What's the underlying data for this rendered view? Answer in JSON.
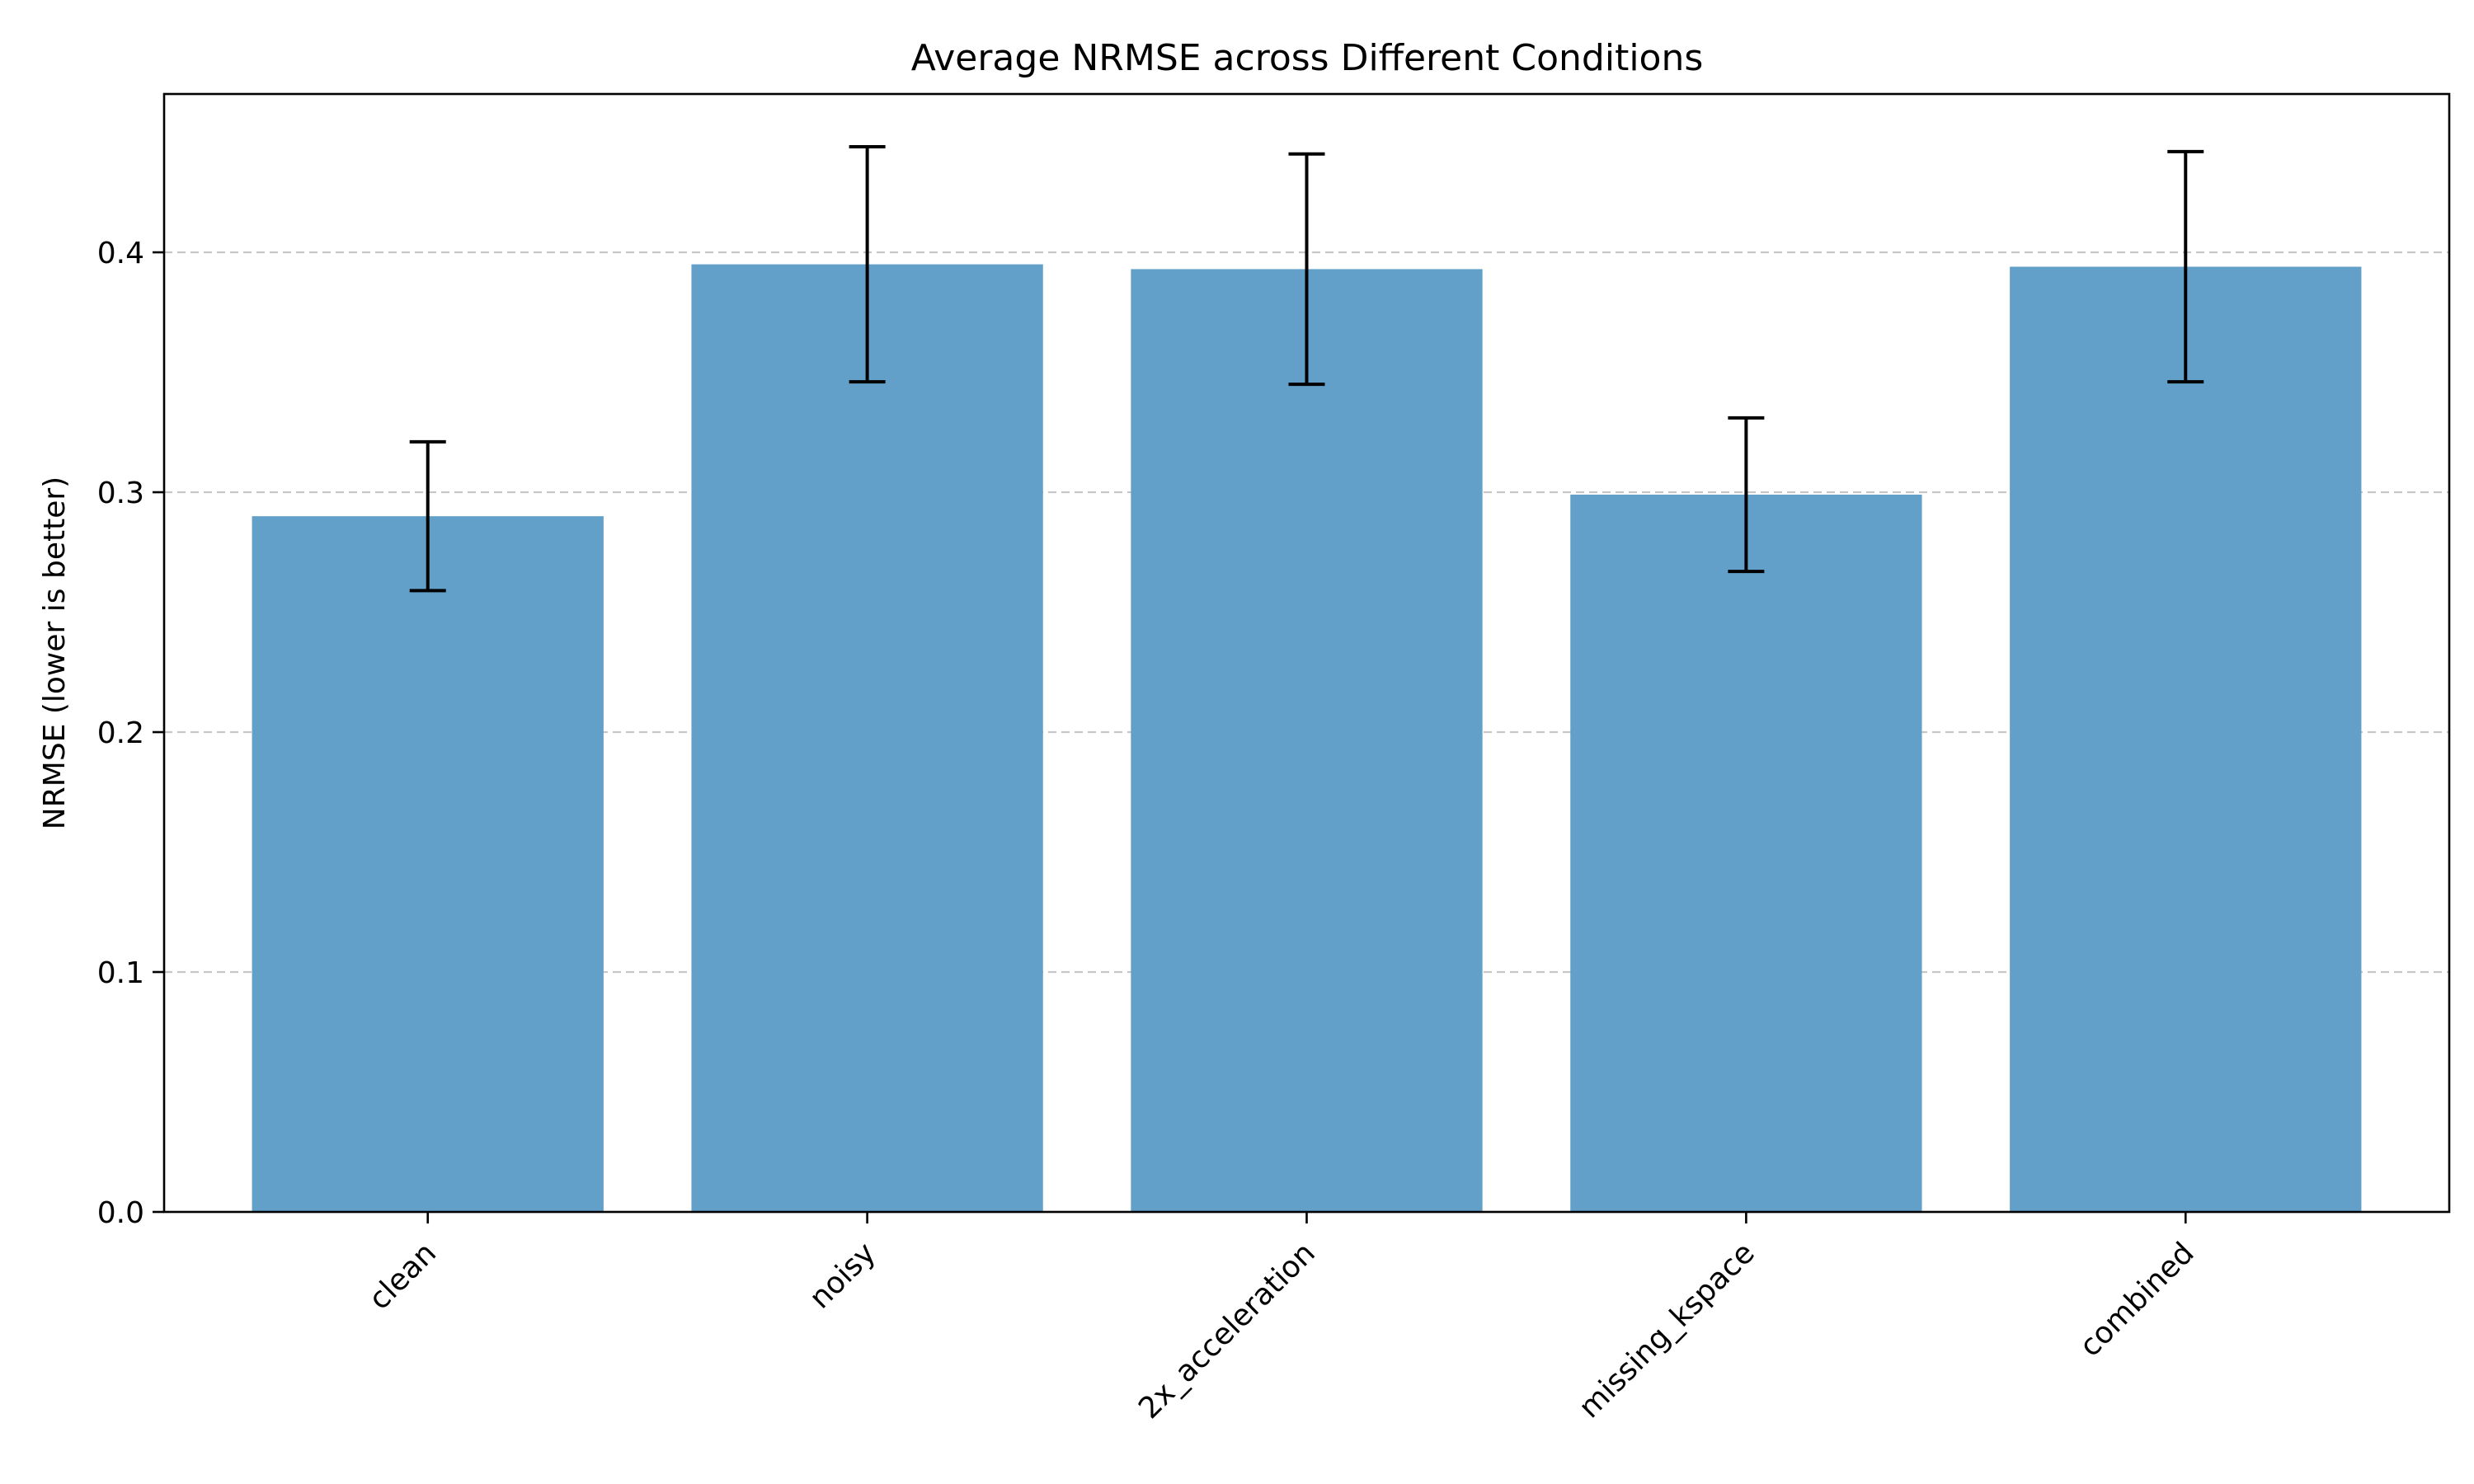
{
  "chart_data": {
    "type": "bar",
    "title": "Average NRMSE across Different Conditions",
    "xlabel": "",
    "ylabel": "NRMSE (lower is better)",
    "categories": [
      "clean",
      "noisy",
      "2x_acceleration",
      "missing_kspace",
      "combined"
    ],
    "values": [
      0.29,
      0.395,
      0.393,
      0.299,
      0.394
    ],
    "errors": [
      0.031,
      0.049,
      0.048,
      0.032,
      0.048
    ],
    "ylim": [
      0,
      0.466
    ],
    "yticks": [
      0.0,
      0.1,
      0.2,
      0.3,
      0.4
    ],
    "ytick_labels": [
      "0.0",
      "0.1",
      "0.2",
      "0.3",
      "0.4"
    ],
    "grid": "y-dashed",
    "colors": {
      "bar": "#62a0ca",
      "error_bar": "#000000",
      "grid": "#c6c6c6"
    }
  }
}
